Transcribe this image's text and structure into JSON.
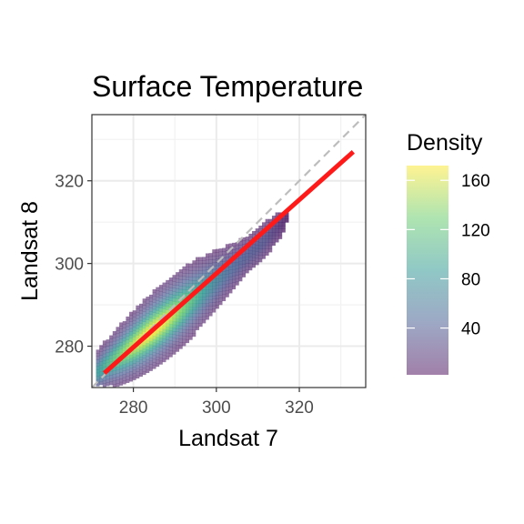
{
  "chart_data": {
    "type": "heatmap",
    "title": "Surface Temperature",
    "xlabel": "Landsat 7",
    "ylabel": "Landsat 8",
    "xlim": [
      270,
      336
    ],
    "ylim": [
      270,
      336
    ],
    "x_ticks": [
      280,
      300,
      320
    ],
    "y_ticks": [
      280,
      300,
      320
    ],
    "grid": true,
    "density": {
      "description_ridge": "density concentrated along a band from (272,274) to (315,310)",
      "ridge": [
        [
          273,
          275
        ],
        [
          276,
          277
        ],
        [
          280,
          280
        ],
        [
          285,
          284
        ],
        [
          290,
          288
        ],
        [
          295,
          292
        ],
        [
          300,
          296
        ],
        [
          305,
          300
        ],
        [
          310,
          304
        ],
        [
          314,
          308
        ]
      ],
      "peak_density": 170
    },
    "reference_lines": [
      {
        "name": "1:1 line",
        "style": "dashed",
        "color": "#bdbdbd",
        "x": [
          270,
          336
        ],
        "y": [
          270,
          336
        ]
      },
      {
        "name": "fit",
        "style": "solid",
        "color": "#ff1a1a",
        "x": [
          273,
          333
        ],
        "y": [
          273.5,
          327
        ]
      }
    ],
    "legend": {
      "title": "Density",
      "ticks": [
        "160",
        "120",
        "80",
        "40"
      ],
      "tick_values": [
        160,
        120,
        80,
        40
      ],
      "range": [
        2,
        172
      ],
      "colormap": "viridis",
      "placement": "right"
    }
  }
}
